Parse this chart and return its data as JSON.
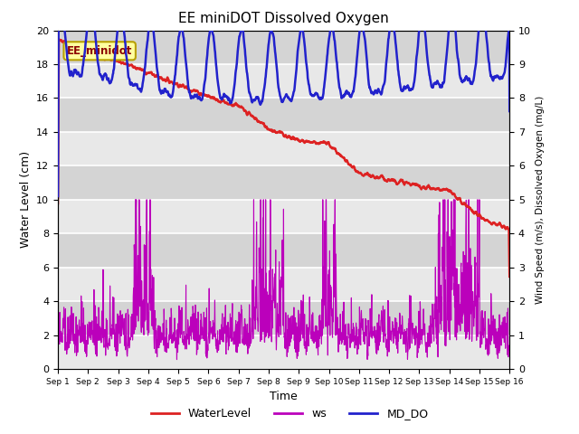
{
  "title": "EE miniDOT Dissolved Oxygen",
  "xlabel": "Time",
  "ylabel_left": "Water Level (cm)",
  "ylabel_right": "Wind Speed (m/s), Dissolved Oxygen (mg/L)",
  "annotation": "EE_minidot",
  "ylim_left": [
    0,
    20
  ],
  "ylim_right": [
    0.0,
    10.0
  ],
  "yticks_left": [
    0,
    2,
    4,
    6,
    8,
    10,
    12,
    14,
    16,
    18,
    20
  ],
  "yticks_right": [
    0.0,
    1.0,
    2.0,
    3.0,
    4.0,
    5.0,
    6.0,
    7.0,
    8.0,
    9.0,
    10.0
  ],
  "xtick_labels": [
    "Sep 1",
    "Sep 2",
    "Sep 3",
    "Sep 4",
    "Sep 5",
    "Sep 6",
    "Sep 7",
    "Sep 8",
    "Sep 9",
    "Sep 10",
    "Sep 11",
    "Sep 12",
    "Sep 13",
    "Sep 14",
    "Sep 15",
    "Sep 16"
  ],
  "plot_bg_color": "#dcdcdc",
  "grid_color": "#f0f0f0",
  "color_water": "#dd2222",
  "color_ws": "#bb00bb",
  "color_do": "#2222cc",
  "legend_labels": [
    "WaterLevel",
    "ws",
    "MD_DO"
  ],
  "n_days": 15,
  "n_per_day": 96
}
